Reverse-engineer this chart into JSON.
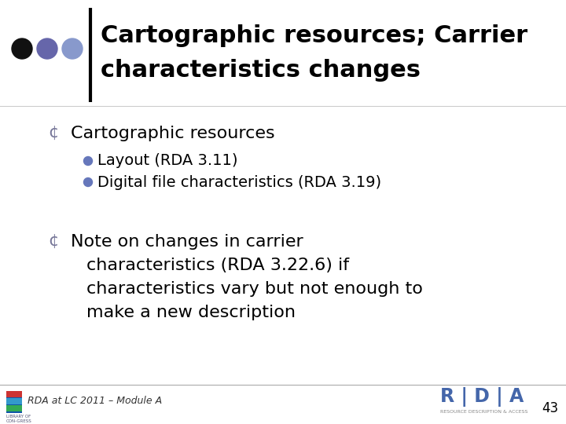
{
  "title_line1": "Cartographic resources; Carrier",
  "title_line2": "characteristics changes",
  "bullet1": "Cartographic resources",
  "sub_bullet1": "Layout (RDA 3.11)",
  "sub_bullet2": "Digital file characteristics (RDA 3.19)",
  "bullet2_line1": "Note on changes in carrier",
  "bullet2_line2": "characteristics (RDA 3.22.6) if",
  "bullet2_line3": "characteristics vary but not enough to",
  "bullet2_line4": "make a new description",
  "footer_left": "RDA at LC 2011 – Module A",
  "footer_page": "43",
  "bg_color": "#ffffff",
  "title_color": "#000000",
  "text_color": "#000000",
  "sub_bullet_color": "#6677bb",
  "dot_colors": [
    "#111111",
    "#6666aa",
    "#8899cc"
  ],
  "footer_rda_color": "#4466aa",
  "bullet_o_color": "#777799"
}
